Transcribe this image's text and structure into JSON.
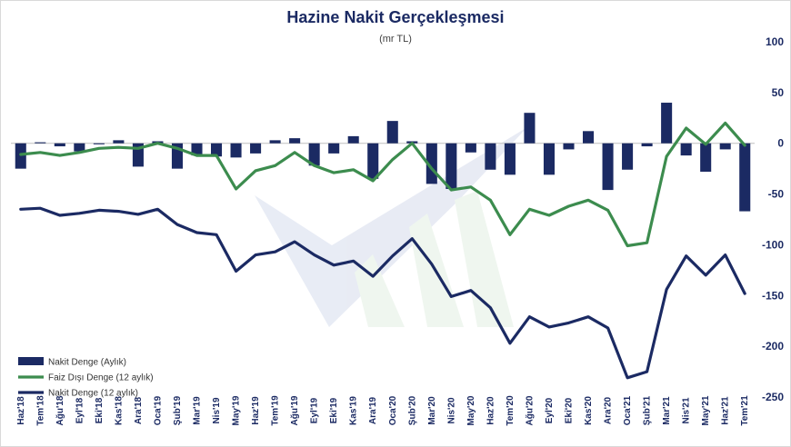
{
  "chart_data": {
    "type": "bar",
    "title": "Hazine Nakit Gerçekleşmesi",
    "subtitle": "(mr TL)",
    "ylim": [
      -250,
      100
    ],
    "yticks": [
      100,
      50,
      0,
      -50,
      -100,
      -150,
      -200,
      -250
    ],
    "y_axis_side": "right",
    "legend_position": "bottom-left",
    "categories": [
      "Haz'18",
      "Tem'18",
      "Ağu'18",
      "Eyl'18",
      "Eki'18",
      "Kas'18",
      "Ara'18",
      "Oca'19",
      "Şub'19",
      "Mar'19",
      "Nis'19",
      "May'19",
      "Haz'19",
      "Tem'19",
      "Ağu'19",
      "Eyl'19",
      "Eki'19",
      "Kas'19",
      "Ara'19",
      "Oca'20",
      "Şub'20",
      "Mar'20",
      "Nis'20",
      "May'20",
      "Haz'20",
      "Tem'20",
      "Ağu'20",
      "Eyl'20",
      "Eki'20",
      "Kas'20",
      "Ara'20",
      "Oca'21",
      "Şub'21",
      "Mar'21",
      "Nis'21",
      "May'21",
      "Haz'21",
      "Tem'21"
    ],
    "series": [
      {
        "name": "Nakit Denge (Aylık)",
        "kind": "bar",
        "color": "#1b2a63",
        "values": [
          -25,
          1,
          -3,
          -8,
          -1,
          3,
          -23,
          2,
          -25,
          -12,
          -13,
          -14,
          -10,
          3,
          5,
          -22,
          -10,
          7,
          -35,
          22,
          2,
          -40,
          -45,
          -9,
          -26,
          -31,
          30,
          -31,
          -6,
          12,
          -46,
          -26,
          -3,
          40,
          -12,
          -28,
          -6,
          -67
        ]
      },
      {
        "name": "Faiz Dışı Denge (12 aylık)",
        "kind": "line",
        "color": "#3c8c4e",
        "values": [
          -11,
          -9,
          -12,
          -9,
          -5,
          -4,
          -5,
          0,
          -5,
          -12,
          -12,
          -45,
          -27,
          -22,
          -9,
          -22,
          -29,
          -26,
          -37,
          -16,
          0,
          -25,
          -46,
          -43,
          -56,
          -90,
          -65,
          -71,
          -62,
          -56,
          -66,
          -101,
          -98,
          -13,
          15,
          -1,
          20,
          -2
        ]
      },
      {
        "name": "Nakit Denge (12 aylık)",
        "kind": "line",
        "color": "#1b2a63",
        "values": [
          -65,
          -64,
          -71,
          -69,
          -66,
          -67,
          -70,
          -65,
          -80,
          -88,
          -90,
          -126,
          -110,
          -107,
          -97,
          -110,
          -120,
          -116,
          -131,
          -111,
          -94,
          -119,
          -151,
          -145,
          -162,
          -197,
          -171,
          -181,
          -177,
          -171,
          -182,
          -231,
          -225,
          -144,
          -111,
          -130,
          -110,
          -148
        ]
      }
    ]
  }
}
